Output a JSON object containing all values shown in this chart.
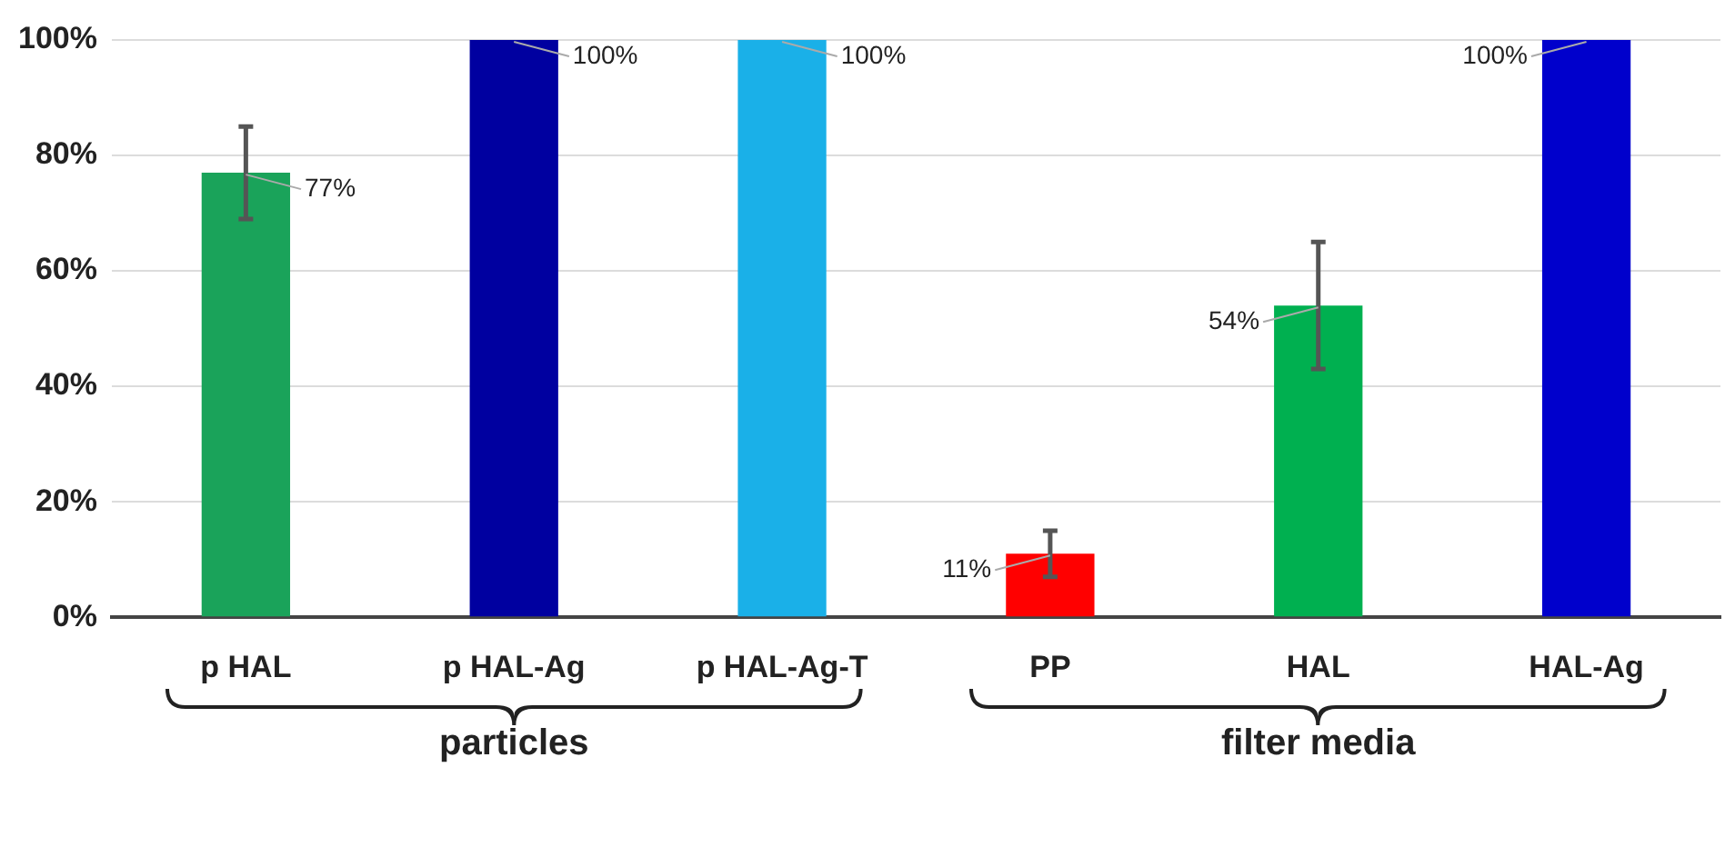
{
  "chart_data": {
    "type": "bar",
    "categories": [
      "p HAL",
      "p HAL-Ag",
      "p HAL-Ag-T",
      "PP",
      "HAL",
      "HAL-Ag"
    ],
    "values": [
      77,
      100,
      100,
      11,
      54,
      100
    ],
    "colors": [
      "#1aa35a",
      "#0000a0",
      "#1ab0e8",
      "#ff0000",
      "#00b050",
      "#0000cc"
    ],
    "errors": [
      [
        69,
        85
      ],
      null,
      null,
      [
        7,
        15
      ],
      [
        43,
        65
      ],
      null
    ],
    "value_labels": [
      "77%",
      "100%",
      "100%",
      "11%",
      "54%",
      "100%"
    ],
    "ylim": [
      0,
      100
    ],
    "yticks": [
      {
        "value": 0,
        "label": "0%"
      },
      {
        "value": 20,
        "label": "20%"
      },
      {
        "value": 40,
        "label": "40%"
      },
      {
        "value": 60,
        "label": "60%"
      },
      {
        "value": 80,
        "label": "80%"
      },
      {
        "value": 100,
        "label": "100%"
      }
    ],
    "grid": "y",
    "legend": false,
    "annotations": [
      "particles",
      "filter media"
    ]
  }
}
